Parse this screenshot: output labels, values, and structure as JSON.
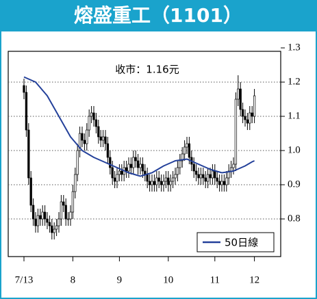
{
  "chart_data": {
    "type": "candlestick",
    "title": "熔盛重工（1101）",
    "annotation": "收市：1.16元",
    "categories": [
      "7/13",
      null,
      null,
      null,
      null,
      null,
      null,
      null,
      null,
      null,
      null,
      null,
      null,
      null,
      null,
      null,
      null,
      null,
      null,
      null,
      null,
      "8",
      null,
      null,
      null,
      null,
      null,
      null,
      null,
      null,
      null,
      null,
      null,
      null,
      null,
      null,
      null,
      null,
      null,
      null,
      null,
      "9",
      null,
      null,
      null,
      null,
      null,
      null,
      null,
      null,
      null,
      null,
      null,
      null,
      null,
      null,
      null,
      null,
      null,
      null,
      null,
      null,
      "10",
      null,
      null,
      null,
      null,
      null,
      null,
      null,
      null,
      null,
      null,
      null,
      null,
      null,
      null,
      null,
      null,
      null,
      null,
      null,
      "11",
      null,
      null,
      null,
      null,
      null,
      null,
      null,
      null,
      null,
      null,
      null,
      null,
      null,
      null,
      null,
      null,
      "12"
    ],
    "open": [
      1.19,
      1.17,
      1.06,
      0.92,
      0.84,
      0.8,
      0.78,
      0.81,
      0.8,
      0.82,
      0.8,
      0.79,
      0.78,
      0.76,
      0.77,
      0.78,
      0.8,
      0.85,
      0.84,
      0.8,
      0.8,
      0.82,
      0.88,
      0.93,
      1.0,
      1.05,
      1.03,
      1.02,
      1.06,
      1.1,
      1.11,
      1.09,
      1.07,
      1.04,
      1.03,
      1.04,
      1.02,
      0.98,
      0.95,
      0.92,
      0.91,
      0.93,
      0.94,
      0.93,
      0.95,
      0.94,
      0.96,
      0.95,
      0.98,
      0.97,
      0.95,
      0.96,
      0.94,
      0.93,
      0.91,
      0.9,
      0.91,
      0.9,
      0.92,
      0.91,
      0.9,
      0.91,
      0.92,
      0.9,
      0.91,
      0.92,
      0.93,
      0.95,
      0.97,
      0.99,
      1.01,
      1.02,
      0.98,
      0.96,
      0.94,
      0.93,
      0.92,
      0.93,
      0.92,
      0.91,
      0.93,
      0.92,
      0.94,
      0.92,
      0.91,
      0.9,
      0.91,
      0.9,
      0.92,
      0.94,
      0.95,
      0.96,
      1.15,
      1.18,
      1.12,
      1.1,
      1.09,
      1.08,
      1.11,
      1.1
    ],
    "high": [
      1.21,
      1.19,
      1.08,
      0.94,
      0.86,
      0.82,
      0.83,
      0.83,
      0.84,
      0.84,
      0.82,
      0.81,
      0.8,
      0.79,
      0.8,
      0.82,
      0.87,
      0.87,
      0.86,
      0.82,
      0.84,
      0.9,
      0.95,
      1.02,
      1.07,
      1.07,
      1.05,
      1.08,
      1.12,
      1.13,
      1.13,
      1.11,
      1.09,
      1.06,
      1.06,
      1.06,
      1.04,
      1.0,
      0.97,
      0.94,
      0.95,
      0.96,
      0.96,
      0.97,
      0.97,
      0.98,
      0.98,
      1.0,
      1.0,
      0.99,
      0.98,
      0.98,
      0.96,
      0.95,
      0.93,
      0.93,
      0.93,
      0.94,
      0.94,
      0.93,
      0.93,
      0.94,
      0.94,
      0.93,
      0.94,
      0.95,
      0.97,
      0.99,
      1.01,
      1.03,
      1.04,
      1.04,
      1.0,
      0.98,
      0.96,
      0.95,
      0.95,
      0.95,
      0.94,
      0.95,
      0.95,
      0.96,
      0.96,
      0.94,
      0.93,
      0.93,
      0.93,
      0.94,
      0.96,
      0.97,
      0.98,
      1.17,
      1.22,
      1.2,
      1.14,
      1.12,
      1.11,
      1.13,
      1.13,
      1.18
    ],
    "low": [
      1.15,
      1.04,
      0.9,
      0.82,
      0.78,
      0.76,
      0.76,
      0.78,
      0.78,
      0.78,
      0.77,
      0.76,
      0.74,
      0.74,
      0.75,
      0.76,
      0.78,
      0.82,
      0.78,
      0.78,
      0.78,
      0.8,
      0.86,
      0.91,
      0.98,
      1.01,
      1.0,
      1.0,
      1.04,
      1.08,
      1.07,
      1.05,
      1.02,
      1.01,
      1.01,
      1.0,
      0.96,
      0.93,
      0.9,
      0.89,
      0.89,
      0.91,
      0.91,
      0.91,
      0.92,
      0.92,
      0.93,
      0.93,
      0.95,
      0.93,
      0.93,
      0.92,
      0.91,
      0.89,
      0.88,
      0.88,
      0.88,
      0.88,
      0.89,
      0.88,
      0.88,
      0.89,
      0.88,
      0.88,
      0.89,
      0.9,
      0.91,
      0.93,
      0.95,
      0.97,
      0.99,
      0.96,
      0.94,
      0.92,
      0.91,
      0.9,
      0.9,
      0.9,
      0.89,
      0.89,
      0.9,
      0.9,
      0.9,
      0.89,
      0.88,
      0.88,
      0.88,
      0.88,
      0.9,
      0.92,
      0.93,
      0.94,
      1.13,
      1.1,
      1.08,
      1.07,
      1.06,
      1.06,
      1.08,
      1.08
    ],
    "close": [
      1.17,
      1.06,
      0.92,
      0.84,
      0.8,
      0.78,
      0.81,
      0.8,
      0.82,
      0.8,
      0.79,
      0.78,
      0.76,
      0.77,
      0.78,
      0.8,
      0.85,
      0.84,
      0.8,
      0.8,
      0.82,
      0.88,
      0.93,
      1.0,
      1.05,
      1.03,
      1.02,
      1.06,
      1.1,
      1.11,
      1.09,
      1.07,
      1.04,
      1.03,
      1.04,
      1.02,
      0.98,
      0.95,
      0.92,
      0.91,
      0.93,
      0.94,
      0.93,
      0.95,
      0.94,
      0.96,
      0.95,
      0.98,
      0.97,
      0.95,
      0.96,
      0.94,
      0.93,
      0.91,
      0.9,
      0.91,
      0.9,
      0.92,
      0.91,
      0.9,
      0.91,
      0.92,
      0.9,
      0.91,
      0.92,
      0.93,
      0.95,
      0.97,
      0.99,
      1.01,
      1.02,
      0.98,
      0.96,
      0.94,
      0.93,
      0.92,
      0.93,
      0.92,
      0.91,
      0.93,
      0.92,
      0.94,
      0.92,
      0.91,
      0.9,
      0.91,
      0.9,
      0.92,
      0.94,
      0.95,
      0.96,
      1.15,
      1.18,
      1.12,
      1.1,
      1.09,
      1.08,
      1.11,
      1.1,
      1.16
    ],
    "series": [
      {
        "name": "50日線",
        "color": "#23409a",
        "values": [
          1.215,
          1.212,
          1.209,
          1.206,
          1.203,
          1.2,
          1.192,
          1.184,
          1.176,
          1.168,
          1.16,
          1.148,
          1.136,
          1.124,
          1.112,
          1.1,
          1.088,
          1.076,
          1.064,
          1.052,
          1.04,
          1.032,
          1.024,
          1.016,
          1.008,
          1.0,
          0.996,
          0.992,
          0.988,
          0.984,
          0.98,
          0.977,
          0.974,
          0.971,
          0.968,
          0.965,
          0.962,
          0.959,
          0.956,
          0.953,
          0.95,
          0.947,
          0.944,
          0.941,
          0.938,
          0.935,
          0.933,
          0.931,
          0.929,
          0.927,
          0.925,
          0.927,
          0.929,
          0.931,
          0.933,
          0.935,
          0.939,
          0.943,
          0.947,
          0.951,
          0.955,
          0.958,
          0.961,
          0.964,
          0.967,
          0.97,
          0.971,
          0.972,
          0.973,
          0.974,
          0.975,
          0.972,
          0.969,
          0.966,
          0.963,
          0.96,
          0.957,
          0.954,
          0.951,
          0.948,
          0.945,
          0.943,
          0.941,
          0.939,
          0.937,
          0.935,
          0.936,
          0.937,
          0.938,
          0.939,
          0.94,
          0.943,
          0.946,
          0.949,
          0.952,
          0.955,
          0.959,
          0.963,
          0.967,
          0.97
        ]
      }
    ],
    "ylim": [
      0.7,
      1.3
    ],
    "yticks": [
      0.8,
      0.9,
      {
        "value": 1,
        "label": "1.0"
      },
      1.1,
      1.2,
      1.3
    ],
    "grid": true,
    "legend": "lower right"
  }
}
